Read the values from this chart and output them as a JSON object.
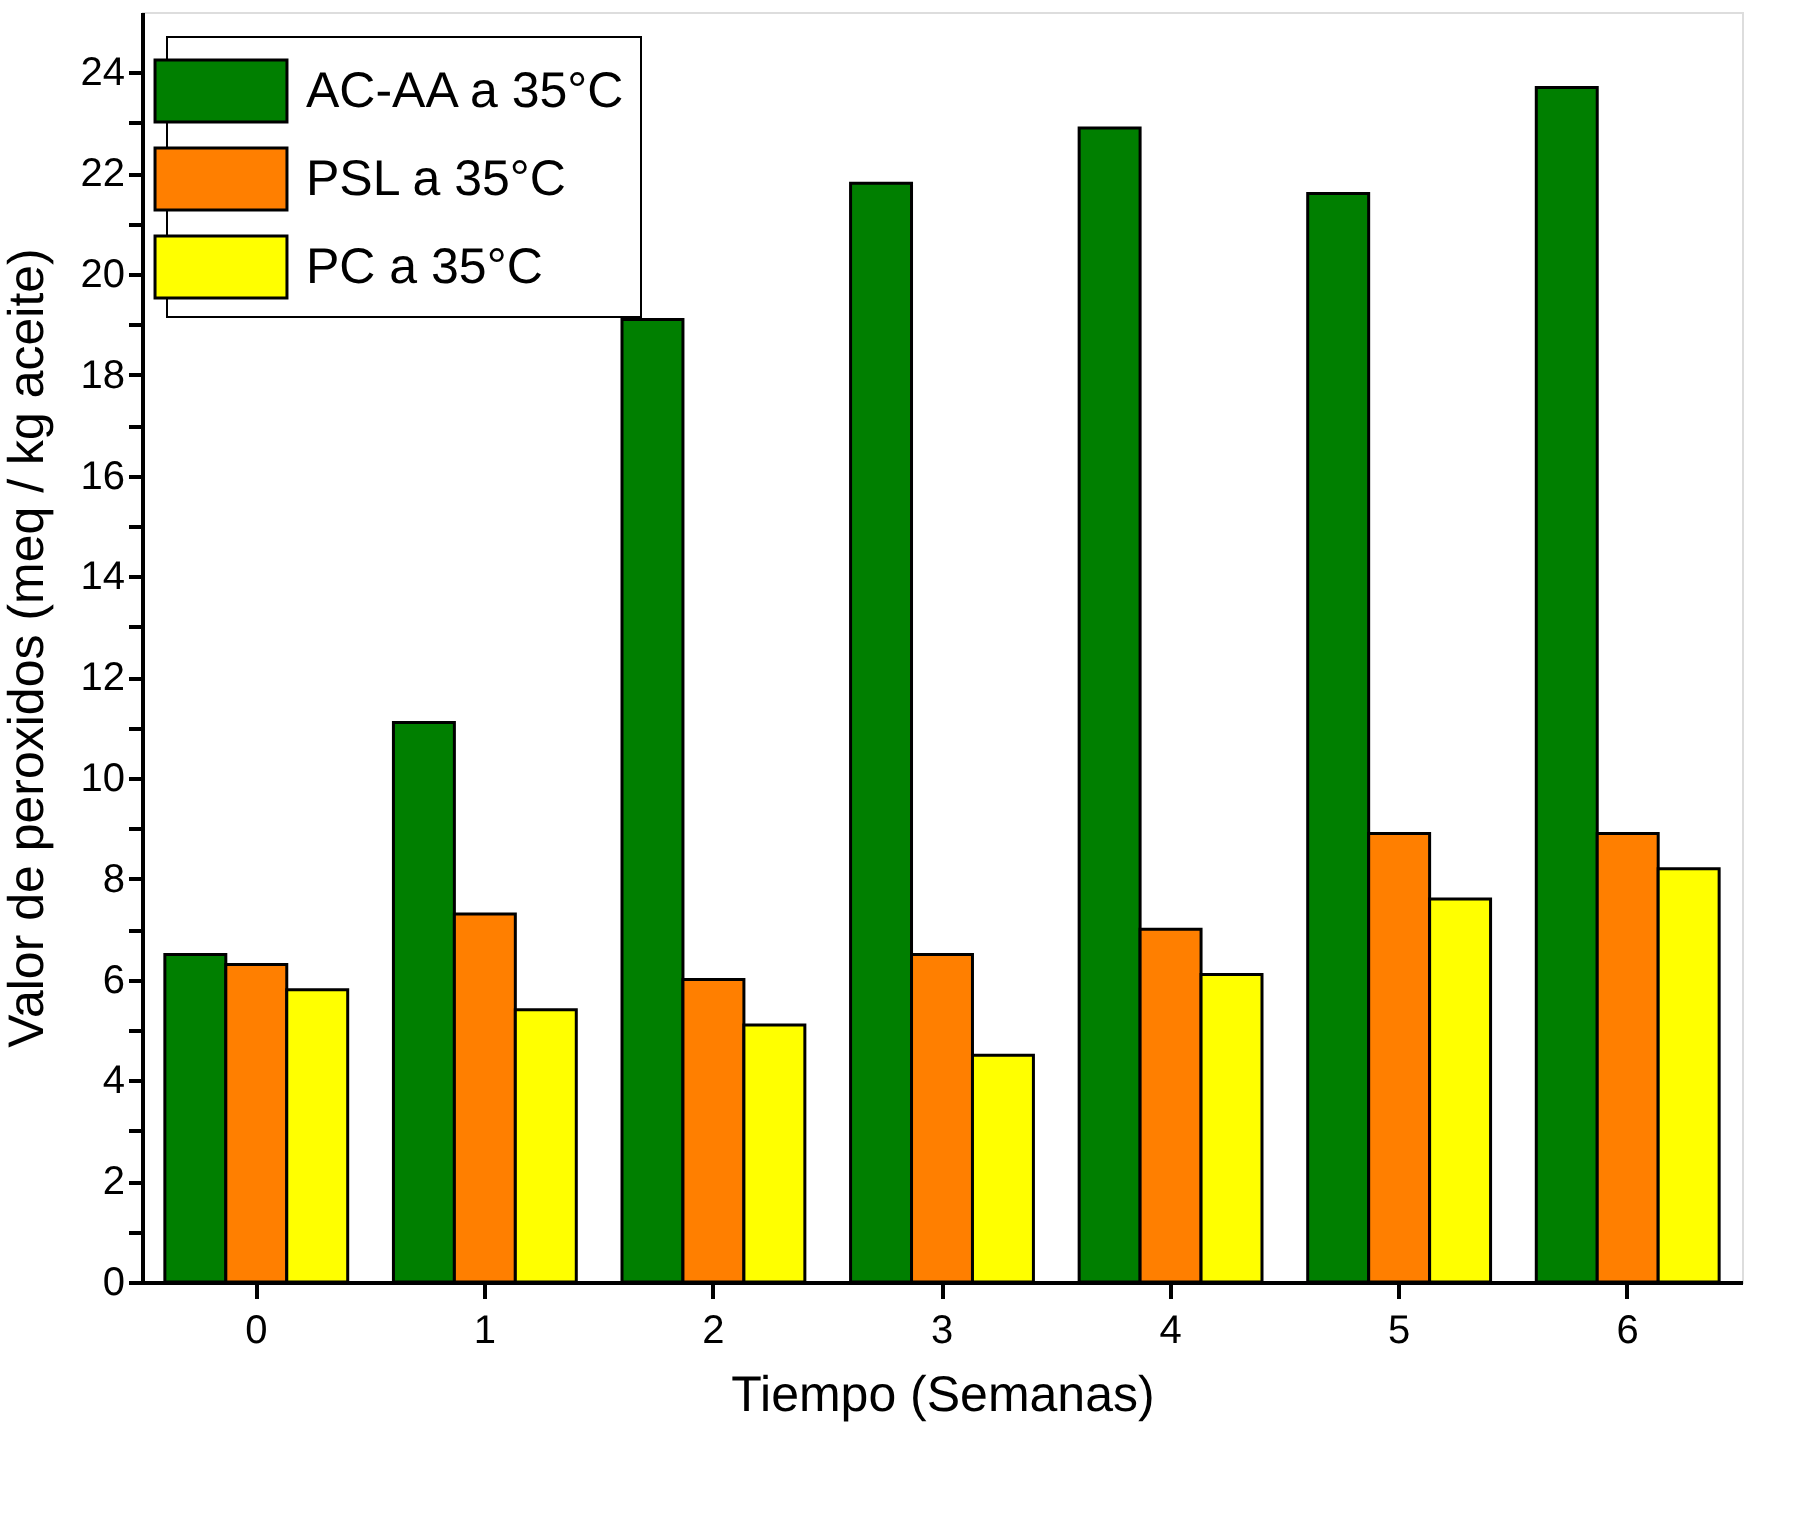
{
  "chart_data": {
    "type": "bar",
    "xlabel": "Tiempo (Semanas)",
    "ylabel": "Valor de peroxidos (meq / kg aceite)",
    "categories": [
      "0",
      "1",
      "2",
      "3",
      "4",
      "5",
      "6"
    ],
    "series": [
      {
        "name": "AC-AA a 35°C",
        "color": "#007f00",
        "values": [
          6.5,
          11.1,
          19.1,
          21.8,
          22.9,
          21.6,
          23.7
        ]
      },
      {
        "name": "PSL a  35°C",
        "color": "#ff7f00",
        "values": [
          6.3,
          7.3,
          6.0,
          6.5,
          7.0,
          8.9,
          8.9
        ]
      },
      {
        "name": "PC a  35°C",
        "color": "#ffff00",
        "values": [
          5.8,
          5.4,
          5.1,
          4.5,
          6.1,
          7.6,
          8.2
        ]
      }
    ],
    "ylim": [
      0,
      25.2
    ],
    "yticks": [
      0,
      {
        "value": 1,
        "label": null
      },
      2,
      {
        "value": 3,
        "label": null
      },
      4,
      {
        "value": 5,
        "label": null
      },
      6,
      {
        "value": 7,
        "label": null
      },
      8,
      {
        "value": 9,
        "label": null
      },
      10,
      {
        "value": 11,
        "label": null
      },
      12,
      {
        "value": 13,
        "label": null
      },
      14,
      {
        "value": 15,
        "label": null
      },
      16,
      {
        "value": 17,
        "label": null
      },
      18,
      {
        "value": 19,
        "label": null
      },
      20,
      {
        "value": 21,
        "label": null
      },
      22,
      {
        "value": 23,
        "label": null
      },
      24
    ],
    "grid": false,
    "legend": "top left"
  }
}
